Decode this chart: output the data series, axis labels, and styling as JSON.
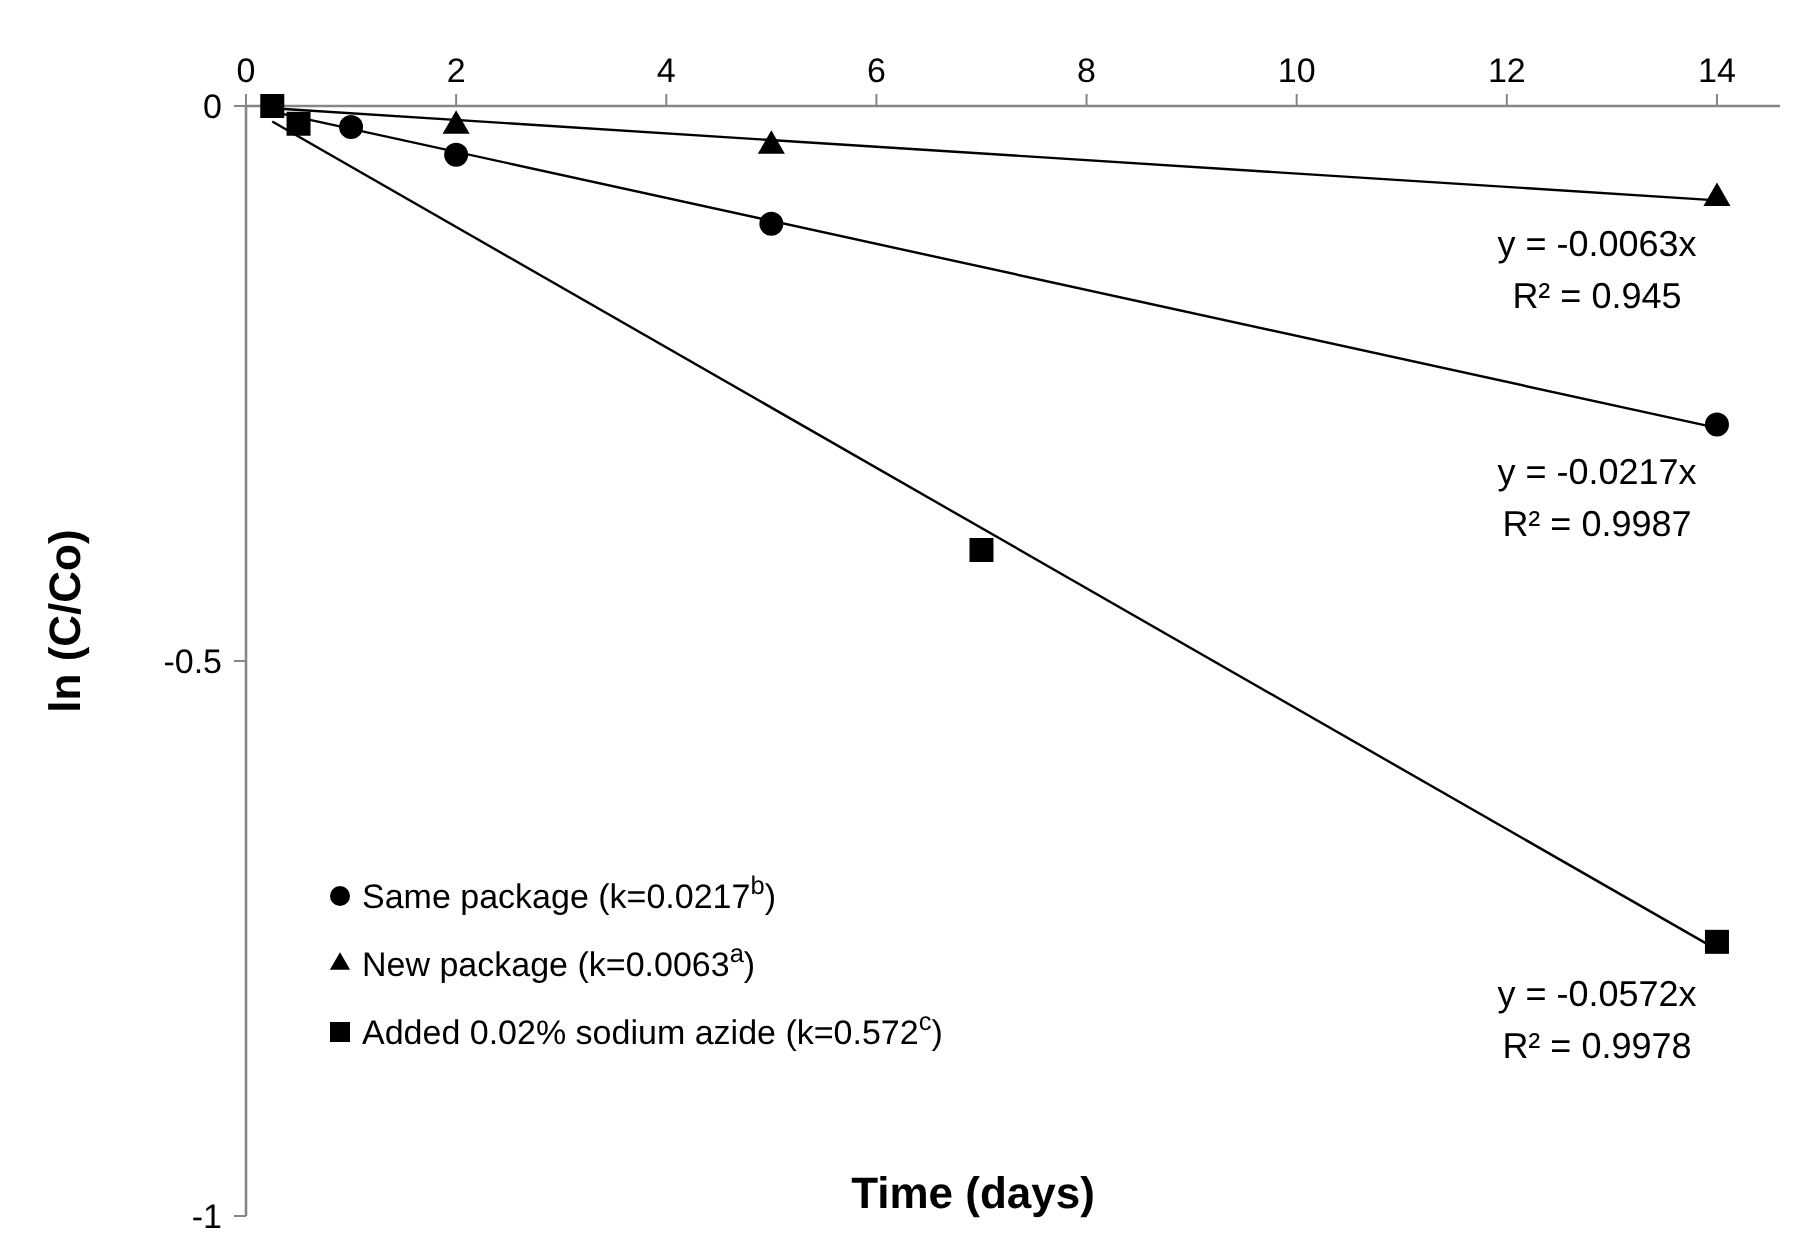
{
  "chart_data": {
    "type": "scatter",
    "xlabel": "Time (days)",
    "ylabel": "ln (C/Co)",
    "xlim": [
      0,
      14.6
    ],
    "xticks": [
      0,
      2,
      4,
      6,
      8,
      10,
      12,
      14
    ],
    "ylim": [
      -1,
      0
    ],
    "yticks": [
      0,
      -0.5,
      -1
    ],
    "grid": false,
    "legend": "bottom left",
    "series": [
      {
        "name": "Same package (k=0.0217$^{b}$)",
        "color": "#000000",
        "marker": "circle",
        "x": [
          1,
          2,
          5,
          14
        ],
        "values": [
          -0.019,
          -0.044,
          -0.106,
          -0.287
        ]
      },
      {
        "name": "New package (k=0.0063$^{a}$)",
        "color": "#000000",
        "marker": "triangle",
        "x": [
          2,
          5,
          14
        ],
        "values": [
          -0.018,
          -0.036,
          -0.083
        ]
      },
      {
        "name": "Added 0.02% sodium azide (k=0.572$^{c}$)",
        "color": "#000000",
        "marker": "square",
        "x": [
          0.25,
          0.5,
          7,
          14
        ],
        "values": [
          0,
          -0.016,
          -0.4,
          -0.753
        ]
      },
      {
        "type": "line",
        "color": "#000000",
        "x": [
          0.25,
          14
        ],
        "values": [
          -0.002,
          -0.085
        ]
      },
      {
        "type": "line",
        "color": "#000000",
        "x": [
          0.25,
          14
        ],
        "values": [
          -0.005,
          -0.29
        ]
      },
      {
        "type": "line",
        "color": "#000000",
        "x": [
          0.25,
          14
        ],
        "values": [
          -0.014,
          -0.76
        ]
      }
    ],
    "annotations": [
      "y = -0.0063x\nR² = 0.945",
      "y = -0.0217x\nR² = 0.9987",
      "y = -0.0572x\nR² = 0.9978"
    ]
  }
}
